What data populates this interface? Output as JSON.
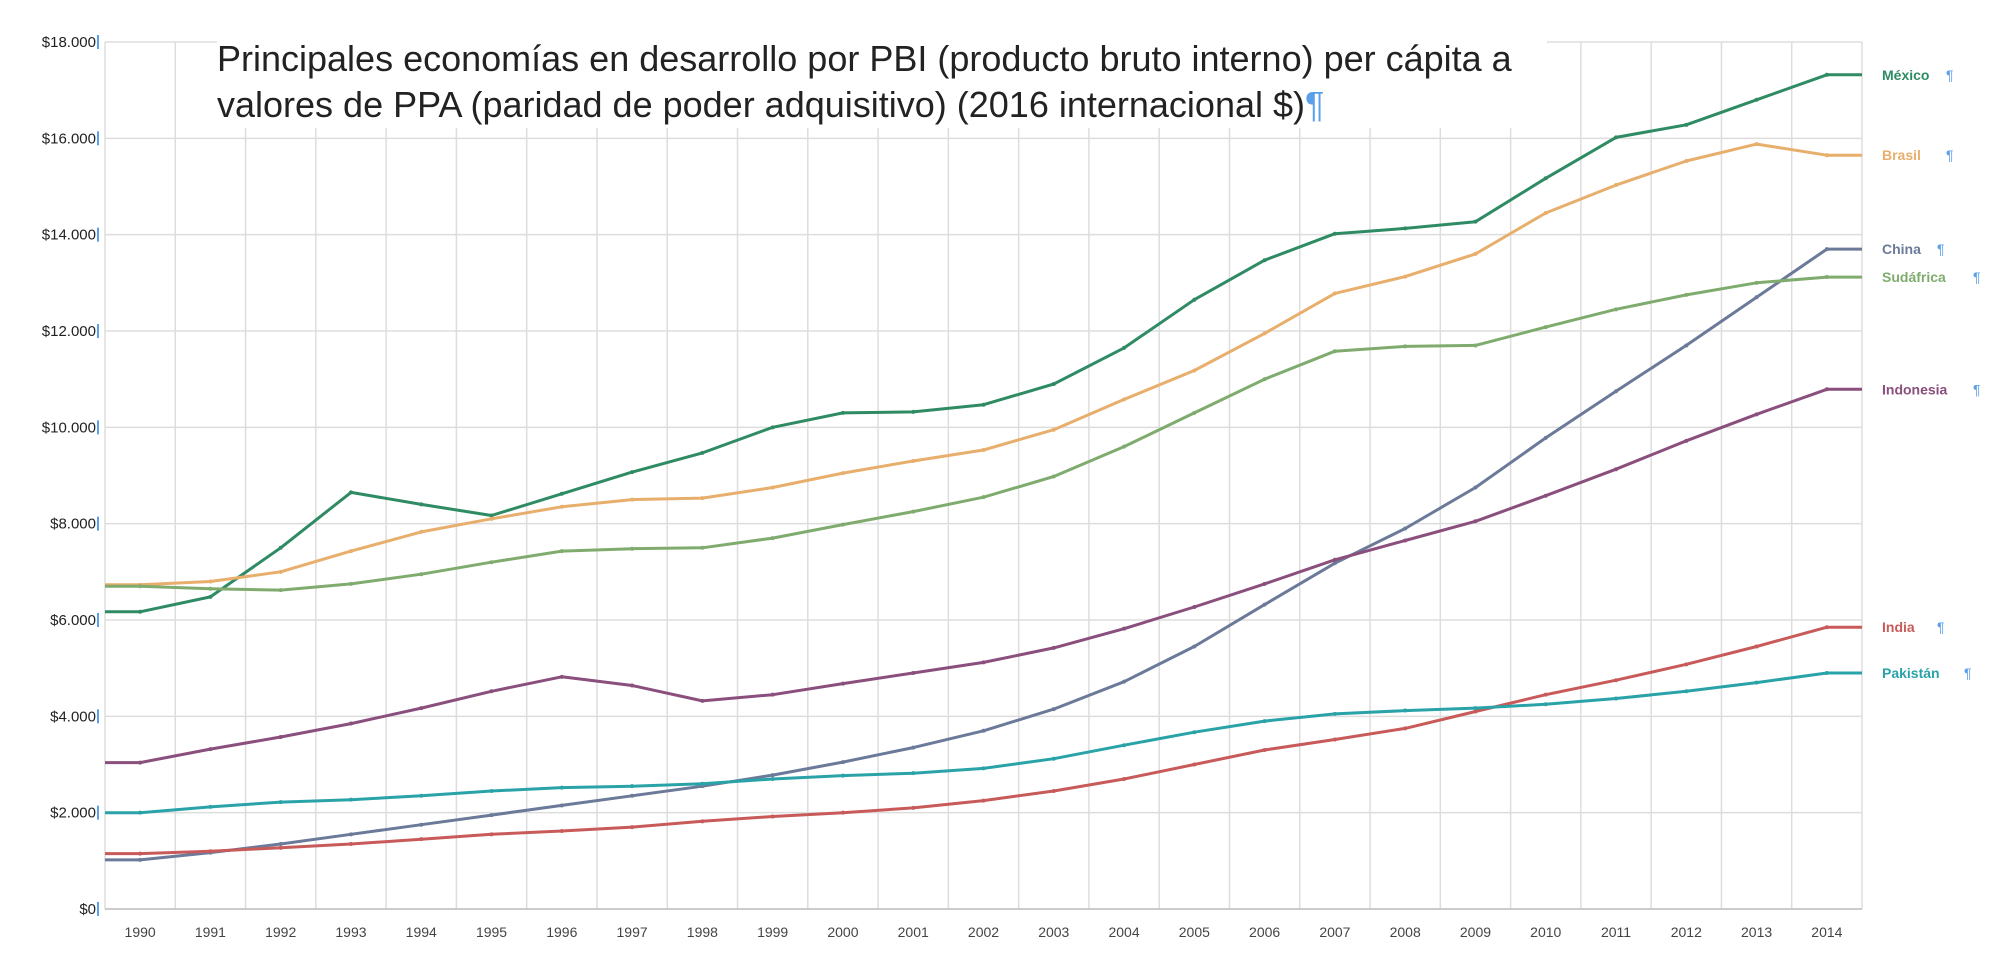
{
  "chart_data": {
    "type": "line",
    "title": "Principales economías en desarrollo por PBI (producto bruto interno) per cápita a valores de PPA (paridad de poder adquisitivo) (2016 internacional $)",
    "xlabel": "",
    "ylabel": "",
    "ylim": [
      0,
      18000
    ],
    "grid": true,
    "legend": "right, labels at line ends",
    "x": [
      "1990",
      "1991",
      "1992",
      "1993",
      "1994",
      "1995",
      "1996",
      "1997",
      "1998",
      "1999",
      "2000",
      "2001",
      "2002",
      "2003",
      "2004",
      "2005",
      "2006",
      "2007",
      "2008",
      "2009",
      "2010",
      "2011",
      "2012",
      "2013",
      "2014"
    ],
    "yticks": [
      {
        "value": 0,
        "label": "$0"
      },
      {
        "value": 2000,
        "label": "$2.000"
      },
      {
        "value": 4000,
        "label": "$4.000"
      },
      {
        "value": 6000,
        "label": "$6.000"
      },
      {
        "value": 8000,
        "label": "$8.000"
      },
      {
        "value": 10000,
        "label": "$10.000"
      },
      {
        "value": 12000,
        "label": "$12.000"
      },
      {
        "value": 14000,
        "label": "$14.000"
      },
      {
        "value": 16000,
        "label": "$16.000"
      },
      {
        "value": 18000,
        "label": "$18.000"
      }
    ],
    "series": [
      {
        "name": "México",
        "color": "#2e8b63",
        "values": [
          6170,
          6480,
          7500,
          8650,
          8400,
          8170,
          8620,
          9070,
          9470,
          10000,
          10300,
          10320,
          10470,
          10900,
          11650,
          12650,
          13470,
          14020,
          14130,
          14270,
          15170,
          16020,
          16280,
          16800,
          17320
        ]
      },
      {
        "name": "Brasil",
        "color": "#e8ae6c",
        "values": [
          6730,
          6800,
          7000,
          7430,
          7830,
          8100,
          8350,
          8500,
          8530,
          8750,
          9050,
          9300,
          9530,
          9950,
          10580,
          11180,
          11950,
          12780,
          13130,
          13600,
          14450,
          15030,
          15530,
          15880,
          15650
        ]
      },
      {
        "name": "China",
        "color": "#6b7a99",
        "values": [
          1020,
          1170,
          1350,
          1550,
          1750,
          1950,
          2150,
          2350,
          2550,
          2780,
          3050,
          3350,
          3700,
          4150,
          4720,
          5450,
          6320,
          7180,
          7900,
          8750,
          9780,
          10750,
          11700,
          12700,
          13700
        ]
      },
      {
        "name": "Sudáfrica",
        "color": "#7fac6e",
        "values": [
          6700,
          6650,
          6620,
          6750,
          6950,
          7200,
          7430,
          7480,
          7500,
          7700,
          7980,
          8250,
          8550,
          8980,
          9600,
          10300,
          11000,
          11580,
          11680,
          11700,
          12080,
          12450,
          12750,
          13000,
          13120
        ]
      },
      {
        "name": "Indonesia",
        "color": "#8a4f7d",
        "values": [
          3040,
          3320,
          3570,
          3850,
          4170,
          4520,
          4820,
          4640,
          4320,
          4450,
          4680,
          4900,
          5120,
          5420,
          5820,
          6270,
          6750,
          7250,
          7650,
          8050,
          8580,
          9130,
          9720,
          10270,
          10790
        ]
      },
      {
        "name": "India",
        "color": "#c85a5a",
        "values": [
          1150,
          1200,
          1270,
          1350,
          1450,
          1550,
          1620,
          1700,
          1820,
          1920,
          2000,
          2100,
          2250,
          2450,
          2700,
          3000,
          3300,
          3520,
          3750,
          4100,
          4450,
          4750,
          5080,
          5450,
          5850
        ]
      },
      {
        "name": "Pakistán",
        "color": "#2aa3a8",
        "values": [
          2000,
          2120,
          2220,
          2270,
          2350,
          2450,
          2520,
          2550,
          2600,
          2700,
          2770,
          2820,
          2920,
          3120,
          3400,
          3670,
          3900,
          4050,
          4120,
          4170,
          4250,
          4370,
          4520,
          4700,
          4900
        ]
      }
    ]
  }
}
